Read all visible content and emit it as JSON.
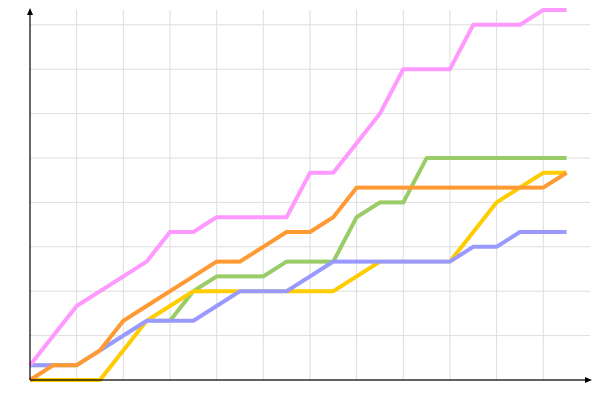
{
  "chart_data": {
    "type": "line",
    "title": "",
    "xlabel": "",
    "ylabel": "",
    "x": [
      0,
      1,
      2,
      3,
      4,
      5,
      6,
      7,
      8,
      9,
      10,
      11,
      12,
      13,
      14,
      15,
      16,
      17,
      18,
      19,
      20,
      21,
      22,
      23
    ],
    "xlim": [
      0,
      24
    ],
    "ylim": [
      0,
      25
    ],
    "x_grid_step": 2,
    "y_grid_step": 3,
    "grid": true,
    "legend": "none",
    "series": [
      {
        "color": "#99cc66",
        "values": [
          1,
          1,
          1,
          2,
          3,
          4,
          4,
          6,
          7,
          7,
          7,
          8,
          8,
          8,
          11,
          12,
          12,
          15,
          15,
          15,
          15,
          15,
          15,
          15
        ]
      },
      {
        "color": "#ffcc00",
        "values": [
          0,
          0,
          0,
          0,
          2,
          4,
          5,
          6,
          6,
          6,
          6,
          6,
          6,
          6,
          7,
          8,
          8,
          8,
          8,
          10,
          12,
          13,
          14,
          14
        ]
      },
      {
        "color": "#9999ff",
        "values": [
          1,
          1,
          1,
          2,
          3,
          4,
          4,
          4,
          5,
          6,
          6,
          6,
          7,
          8,
          8,
          8,
          8,
          8,
          8,
          9,
          9,
          10,
          10,
          10
        ]
      },
      {
        "color": "#ff9933",
        "values": [
          0,
          1,
          1,
          2,
          4,
          5,
          6,
          7,
          8,
          8,
          9,
          10,
          10,
          11,
          13,
          13,
          13,
          13,
          13,
          13,
          13,
          13,
          13,
          14
        ]
      },
      {
        "color": "#ff99ff",
        "values": [
          1,
          3,
          5,
          6,
          7,
          8,
          10,
          10,
          11,
          11,
          11,
          11,
          14,
          14,
          16,
          18,
          21,
          21,
          21,
          24,
          24,
          24,
          25,
          25
        ]
      }
    ]
  }
}
